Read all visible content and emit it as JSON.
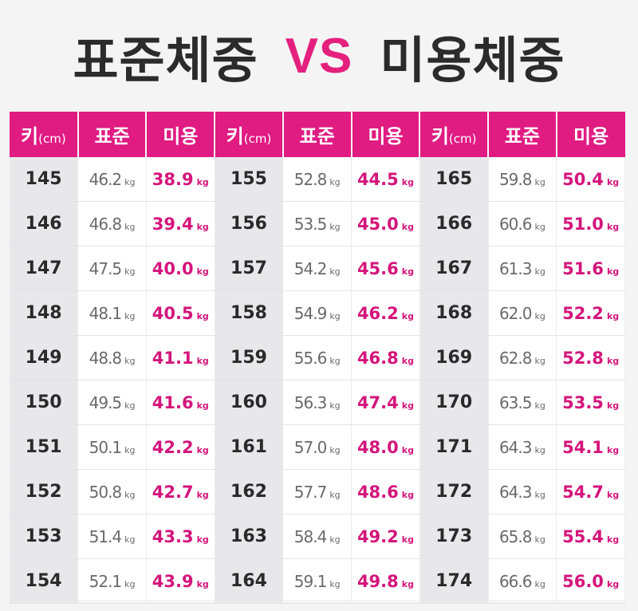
{
  "title": {
    "standard": "표준체중",
    "vs": "VS",
    "beauty": "미용체중"
  },
  "headers": {
    "height": "키",
    "height_unit": "(cm)",
    "standard": "표준",
    "beauty": "미용"
  },
  "unit_kg": "kg",
  "rows": [
    [
      [
        "145",
        "46.2",
        "38.9"
      ],
      [
        "155",
        "52.8",
        "44.5"
      ],
      [
        "165",
        "59.8",
        "50.4"
      ]
    ],
    [
      [
        "146",
        "46.8",
        "39.4"
      ],
      [
        "156",
        "53.5",
        "45.0"
      ],
      [
        "166",
        "60.6",
        "51.0"
      ]
    ],
    [
      [
        "147",
        "47.5",
        "40.0"
      ],
      [
        "157",
        "54.2",
        "45.6"
      ],
      [
        "167",
        "61.3",
        "51.6"
      ]
    ],
    [
      [
        "148",
        "48.1",
        "40.5"
      ],
      [
        "158",
        "54.9",
        "46.2"
      ],
      [
        "168",
        "62.0",
        "52.2"
      ]
    ],
    [
      [
        "149",
        "48.8",
        "41.1"
      ],
      [
        "159",
        "55.6",
        "46.8"
      ],
      [
        "169",
        "62.8",
        "52.8"
      ]
    ],
    [
      [
        "150",
        "49.5",
        "41.6"
      ],
      [
        "160",
        "56.3",
        "47.4"
      ],
      [
        "170",
        "63.5",
        "53.5"
      ]
    ],
    [
      [
        "151",
        "50.1",
        "42.2"
      ],
      [
        "161",
        "57.0",
        "48.0"
      ],
      [
        "171",
        "64.3",
        "54.1"
      ]
    ],
    [
      [
        "152",
        "50.8",
        "42.7"
      ],
      [
        "162",
        "57.7",
        "48.6"
      ],
      [
        "172",
        "64.3",
        "54.7"
      ]
    ],
    [
      [
        "153",
        "51.4",
        "43.3"
      ],
      [
        "163",
        "58.4",
        "49.2"
      ],
      [
        "173",
        "65.8",
        "55.4"
      ]
    ],
    [
      [
        "154",
        "52.1",
        "43.9"
      ],
      [
        "164",
        "59.1",
        "49.8"
      ],
      [
        "174",
        "66.6",
        "56.0"
      ]
    ]
  ]
}
